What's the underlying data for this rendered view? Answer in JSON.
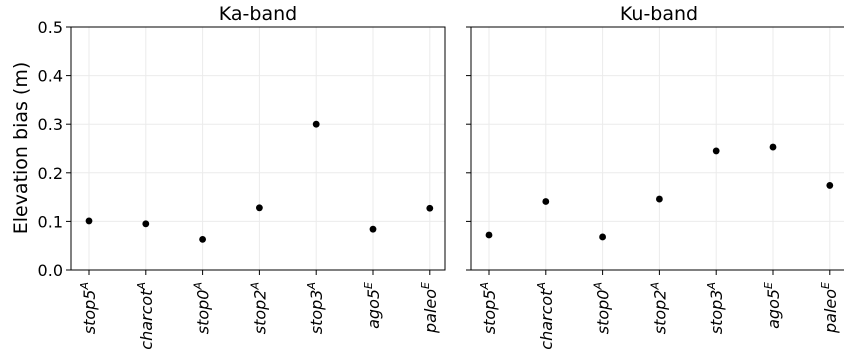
{
  "chart_data": {
    "type": "scatter",
    "ylabel": "Elevation bias (m)",
    "ylim": [
      0,
      0.5
    ],
    "yticks": [
      "0.0",
      "0.1",
      "0.2",
      "0.3",
      "0.4",
      "0.5"
    ],
    "grid": true,
    "categories": [
      {
        "base": "stop5",
        "sup": "A"
      },
      {
        "base": "charcot",
        "sup": "A"
      },
      {
        "base": "stop0",
        "sup": "A"
      },
      {
        "base": "stop2",
        "sup": "A"
      },
      {
        "base": "stop3",
        "sup": "A"
      },
      {
        "base": "ago5",
        "sup": "E"
      },
      {
        "base": "paleo",
        "sup": "E"
      }
    ],
    "panels": [
      {
        "title": "Ka-band",
        "values": [
          0.101,
          0.095,
          0.063,
          0.128,
          0.3,
          0.084,
          0.127
        ]
      },
      {
        "title": "Ku-band",
        "values": [
          0.072,
          0.141,
          0.068,
          0.146,
          0.245,
          0.253,
          0.174
        ]
      }
    ],
    "marker_color": "#000000"
  }
}
